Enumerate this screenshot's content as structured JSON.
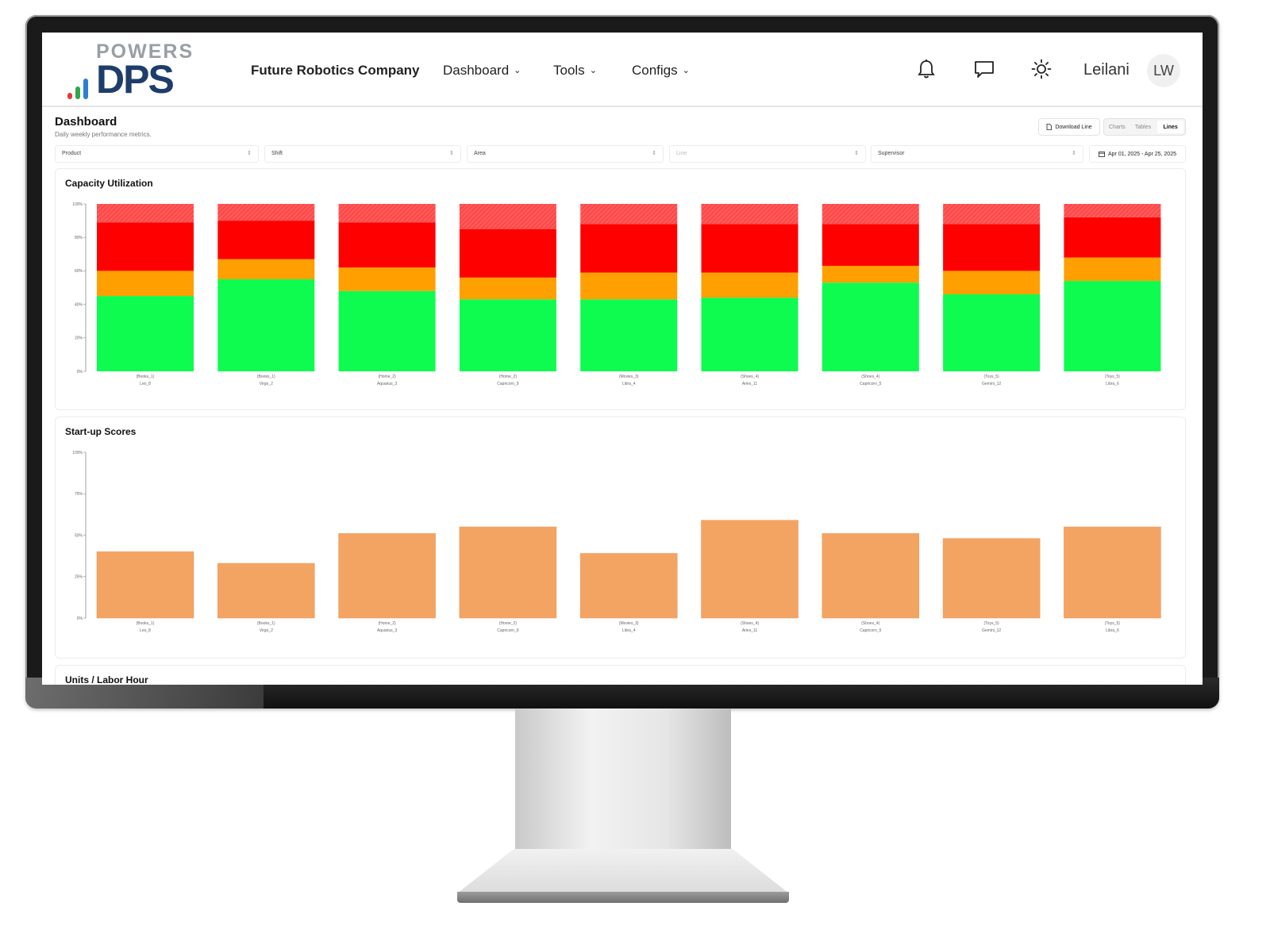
{
  "header": {
    "logo_top": "POWERS",
    "logo_main": "DPS",
    "company": "Future Robotics Company",
    "nav": [
      {
        "label": "Dashboard"
      },
      {
        "label": "Tools"
      },
      {
        "label": "Configs"
      }
    ],
    "icons": [
      "bell-icon",
      "chat-icon",
      "sun-icon"
    ],
    "user_name": "Leilani",
    "user_initials": "LW"
  },
  "page": {
    "title": "Dashboard",
    "subtitle": "Daily weekly performance metrics.",
    "download_label": "Download Line",
    "views": [
      "Charts",
      "Tables",
      "Lines"
    ],
    "active_view": "Lines"
  },
  "filters": {
    "product": "Product",
    "shift": "Shift",
    "area": "Area",
    "line": "Line",
    "supervisor": "Supervisor",
    "date_range": "Apr 01, 2025 - Apr 25, 2025"
  },
  "colors": {
    "green": "#0dfc4f",
    "orange": "#ff9f00",
    "red": "#ff0000",
    "light_red": "#ff5a5a",
    "startup_bar": "#f4a462"
  },
  "chart_data": [
    {
      "type": "bar",
      "stacked": true,
      "title": "Capacity Utilization",
      "categories": [
        [
          "(Books_1)",
          "Leo_8"
        ],
        [
          "(Books_1)",
          "Virgo_2"
        ],
        [
          "(Home_2)",
          "Aquarius_3"
        ],
        [
          "(Home_2)",
          "Capricorn_9"
        ],
        [
          "(Movies_3)",
          "Libra_4"
        ],
        [
          "(Shoes_4)",
          "Aries_11"
        ],
        [
          "(Shoes_4)",
          "Capricorn_5"
        ],
        [
          "(Toys_5)",
          "Gemini_12"
        ],
        [
          "(Toys_5)",
          "Libra_6"
        ]
      ],
      "yticks": [
        "0%",
        "20%",
        "40%",
        "60%",
        "80%",
        "100%"
      ],
      "ylim": [
        0,
        100
      ],
      "series": [
        {
          "values": [
            45,
            55,
            48,
            43,
            43,
            44,
            53,
            46,
            54
          ]
        },
        {
          "values": [
            15,
            12,
            14,
            13,
            16,
            15,
            10,
            14,
            14
          ]
        },
        {
          "values": [
            29,
            23,
            27,
            29,
            29,
            29,
            25,
            28,
            24
          ]
        },
        {
          "values": [
            11,
            10,
            11,
            15,
            12,
            12,
            12,
            12,
            8
          ]
        }
      ]
    },
    {
      "type": "bar",
      "title": "Start-up Scores",
      "categories": [
        [
          "(Books_1)",
          "Leo_8"
        ],
        [
          "(Books_1)",
          "Virgo_2"
        ],
        [
          "(Home_2)",
          "Aquarius_3"
        ],
        [
          "(Home_2)",
          "Capricorn_9"
        ],
        [
          "(Movies_3)",
          "Libra_4"
        ],
        [
          "(Shoes_4)",
          "Aries_11"
        ],
        [
          "(Shoes_4)",
          "Capricorn_5"
        ],
        [
          "(Toys_5)",
          "Gemini_12"
        ],
        [
          "(Toys_5)",
          "Libra_6"
        ]
      ],
      "yticks": [
        "0%",
        "25%",
        "50%",
        "75%",
        "100%"
      ],
      "ylim": [
        0,
        100
      ],
      "values": [
        40,
        33,
        51,
        55,
        39,
        59,
        51,
        48,
        55
      ]
    },
    {
      "type": "bar",
      "title": "Units / Labor Hour"
    }
  ]
}
